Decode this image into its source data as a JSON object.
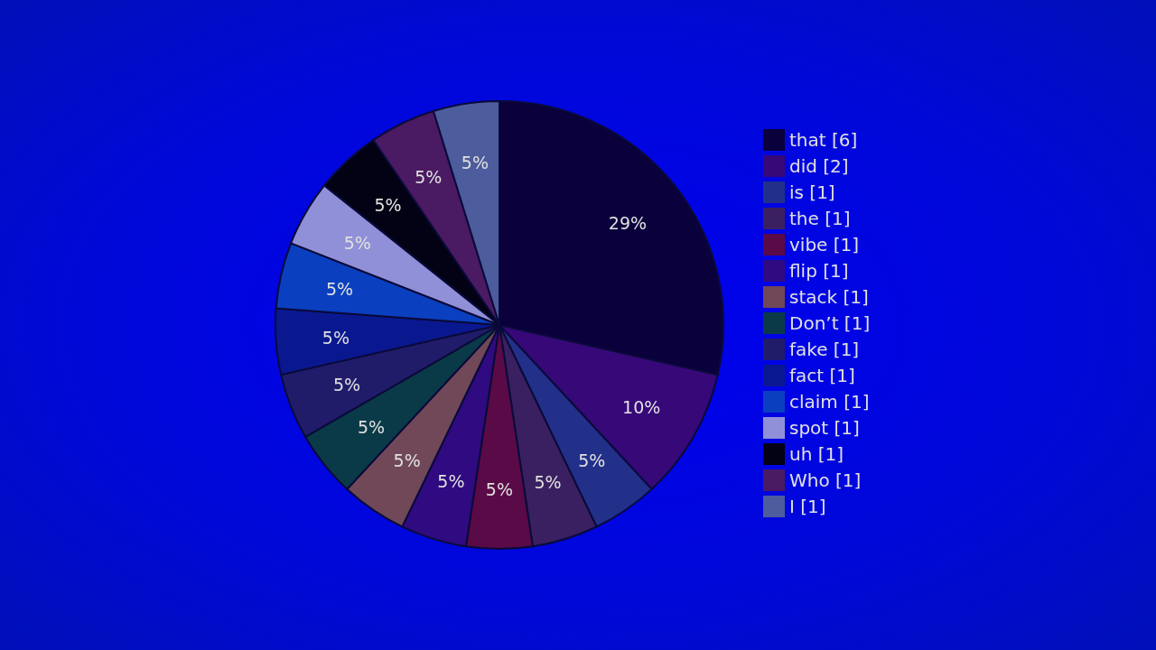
{
  "chart_data": {
    "type": "pie",
    "categories": [
      "that [6]",
      "did [2]",
      "is [1]",
      "the [1]",
      "vibe [1]",
      "flip [1]",
      "stack [1]",
      "Don’t [1]",
      "fake [1]",
      "fact [1]",
      "claim [1]",
      "spot [1]",
      "uh [1]",
      "Who [1]",
      "I [1]"
    ],
    "values": [
      28.57,
      9.52,
      4.76,
      4.76,
      4.76,
      4.76,
      4.76,
      4.76,
      4.76,
      4.76,
      4.76,
      4.76,
      4.76,
      4.76,
      4.76
    ],
    "value_labels": [
      "29%",
      "10%",
      "5%",
      "5%",
      "5%",
      "5%",
      "5%",
      "5%",
      "5%",
      "5%",
      "5%",
      "5%",
      "5%",
      "5%",
      "5%"
    ],
    "colors": [
      "#0a003c",
      "#360878",
      "#22308a",
      "#3a2060",
      "#5a0a46",
      "#300a80",
      "#704858",
      "#0a3a48",
      "#201c6a",
      "#0a1890",
      "#0a40c0",
      "#9090d8",
      "#020214",
      "#4a1a62",
      "#4c5c9c"
    ],
    "legend": "right"
  }
}
